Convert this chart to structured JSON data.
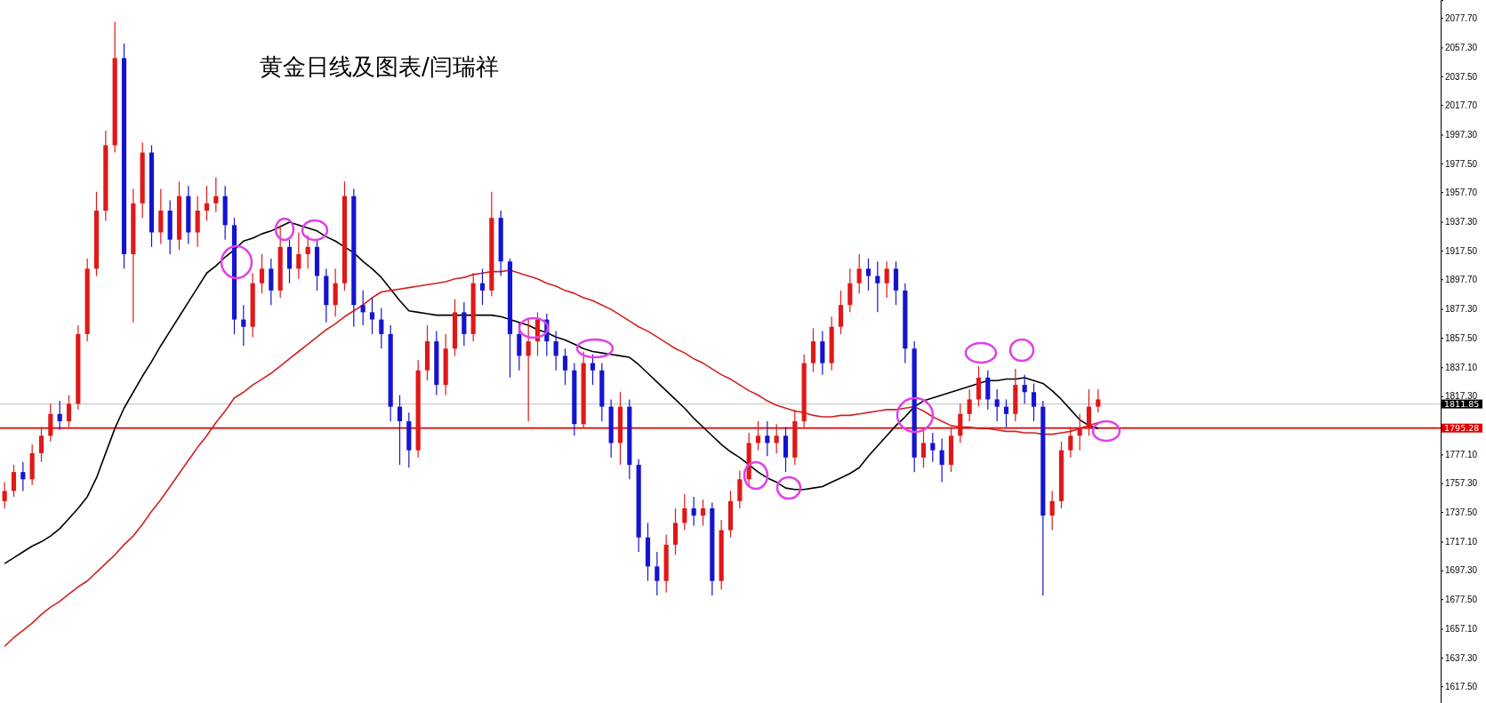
{
  "chart_data": {
    "type": "candlestick",
    "title": "黄金日线及图表/闫瑞祥",
    "categories": [
      null,
      null,
      null,
      null,
      null,
      null,
      null,
      null,
      null,
      null,
      null,
      null,
      null,
      null,
      null,
      null,
      null,
      null,
      null,
      null,
      null,
      null,
      null,
      null,
      null,
      null,
      null,
      null,
      null,
      null,
      null,
      null,
      null,
      null,
      null,
      null,
      null,
      null,
      null,
      null,
      null,
      null,
      null,
      null,
      null,
      null,
      null,
      null,
      null,
      null,
      null,
      null,
      null,
      null,
      null,
      null,
      null,
      null,
      null,
      null,
      null,
      null,
      null,
      null,
      null,
      null,
      null,
      null,
      null,
      null,
      null,
      null,
      null,
      null,
      null,
      null,
      null,
      null,
      null,
      null,
      null,
      null,
      null,
      null,
      null,
      null,
      null,
      null,
      null,
      null,
      null,
      null,
      null,
      null,
      null,
      null,
      null,
      null,
      null,
      null,
      null,
      null,
      null,
      null,
      null,
      null,
      null,
      null,
      null,
      null,
      null,
      null,
      null,
      null,
      null,
      null,
      null,
      null,
      null,
      null
    ],
    "ohlc": [
      [
        1745,
        1758,
        1740,
        1752
      ],
      [
        1752,
        1770,
        1748,
        1765
      ],
      [
        1765,
        1772,
        1752,
        1760
      ],
      [
        1760,
        1784,
        1756,
        1778
      ],
      [
        1778,
        1796,
        1772,
        1790
      ],
      [
        1790,
        1812,
        1786,
        1805
      ],
      [
        1805,
        1814,
        1794,
        1800
      ],
      [
        1800,
        1818,
        1796,
        1812
      ],
      [
        1812,
        1866,
        1808,
        1860
      ],
      [
        1860,
        1912,
        1855,
        1905
      ],
      [
        1905,
        1958,
        1900,
        1945
      ],
      [
        1945,
        2000,
        1938,
        1990
      ],
      [
        1990,
        2075,
        1985,
        2050
      ],
      [
        2050,
        2060,
        1905,
        1915
      ],
      [
        1915,
        1960,
        1868,
        1950
      ],
      [
        1950,
        1992,
        1940,
        1985
      ],
      [
        1985,
        1990,
        1920,
        1930
      ],
      [
        1930,
        1960,
        1922,
        1945
      ],
      [
        1945,
        1952,
        1915,
        1925
      ],
      [
        1925,
        1965,
        1918,
        1955
      ],
      [
        1955,
        1962,
        1922,
        1930
      ],
      [
        1930,
        1955,
        1920,
        1945
      ],
      [
        1945,
        1962,
        1938,
        1950
      ],
      [
        1950,
        1968,
        1944,
        1955
      ],
      [
        1955,
        1962,
        1925,
        1935
      ],
      [
        1935,
        1940,
        1860,
        1870
      ],
      [
        1870,
        1880,
        1852,
        1865
      ],
      [
        1865,
        1902,
        1858,
        1895
      ],
      [
        1895,
        1915,
        1888,
        1905
      ],
      [
        1905,
        1912,
        1880,
        1890
      ],
      [
        1890,
        1935,
        1885,
        1920
      ],
      [
        1920,
        1925,
        1895,
        1905
      ],
      [
        1905,
        1930,
        1898,
        1915
      ],
      [
        1915,
        1928,
        1905,
        1920
      ],
      [
        1920,
        1925,
        1890,
        1900
      ],
      [
        1900,
        1905,
        1868,
        1880
      ],
      [
        1880,
        1905,
        1872,
        1895
      ],
      [
        1895,
        1965,
        1890,
        1955
      ],
      [
        1955,
        1960,
        1865,
        1880
      ],
      [
        1880,
        1890,
        1866,
        1875
      ],
      [
        1875,
        1885,
        1860,
        1870
      ],
      [
        1870,
        1878,
        1850,
        1860
      ],
      [
        1860,
        1866,
        1800,
        1810
      ],
      [
        1810,
        1818,
        1770,
        1800
      ],
      [
        1800,
        1806,
        1768,
        1780
      ],
      [
        1780,
        1842,
        1775,
        1835
      ],
      [
        1835,
        1866,
        1828,
        1855
      ],
      [
        1855,
        1862,
        1818,
        1825
      ],
      [
        1825,
        1860,
        1818,
        1850
      ],
      [
        1850,
        1884,
        1845,
        1875
      ],
      [
        1875,
        1882,
        1852,
        1860
      ],
      [
        1860,
        1902,
        1855,
        1895
      ],
      [
        1895,
        1905,
        1880,
        1890
      ],
      [
        1890,
        1958,
        1886,
        1940
      ],
      [
        1940,
        1945,
        1900,
        1910
      ],
      [
        1910,
        1912,
        1830,
        1860
      ],
      [
        1860,
        1868,
        1835,
        1845
      ],
      [
        1845,
        1870,
        1800,
        1855
      ],
      [
        1855,
        1875,
        1845,
        1870
      ],
      [
        1870,
        1874,
        1845,
        1855
      ],
      [
        1855,
        1862,
        1835,
        1845
      ],
      [
        1845,
        1850,
        1825,
        1835
      ],
      [
        1835,
        1840,
        1790,
        1798
      ],
      [
        1798,
        1848,
        1795,
        1840
      ],
      [
        1840,
        1846,
        1825,
        1835
      ],
      [
        1835,
        1840,
        1800,
        1810
      ],
      [
        1810,
        1815,
        1775,
        1785
      ],
      [
        1785,
        1820,
        1770,
        1810
      ],
      [
        1810,
        1815,
        1760,
        1770
      ],
      [
        1770,
        1774,
        1710,
        1720
      ],
      [
        1720,
        1730,
        1690,
        1700
      ],
      [
        1700,
        1710,
        1680,
        1690
      ],
      [
        1690,
        1722,
        1682,
        1715
      ],
      [
        1715,
        1740,
        1708,
        1730
      ],
      [
        1730,
        1750,
        1725,
        1740
      ],
      [
        1740,
        1748,
        1728,
        1735
      ],
      [
        1735,
        1746,
        1728,
        1740
      ],
      [
        1740,
        1744,
        1680,
        1690
      ],
      [
        1690,
        1732,
        1684,
        1725
      ],
      [
        1725,
        1752,
        1720,
        1745
      ],
      [
        1745,
        1766,
        1740,
        1760
      ],
      [
        1760,
        1792,
        1756,
        1785
      ],
      [
        1785,
        1800,
        1780,
        1790
      ],
      [
        1790,
        1800,
        1776,
        1785
      ],
      [
        1785,
        1798,
        1778,
        1790
      ],
      [
        1790,
        1796,
        1765,
        1775
      ],
      [
        1775,
        1808,
        1770,
        1800
      ],
      [
        1800,
        1846,
        1796,
        1840
      ],
      [
        1840,
        1864,
        1834,
        1855
      ],
      [
        1855,
        1862,
        1832,
        1840
      ],
      [
        1840,
        1872,
        1835,
        1865
      ],
      [
        1865,
        1890,
        1860,
        1880
      ],
      [
        1880,
        1905,
        1875,
        1895
      ],
      [
        1895,
        1915,
        1888,
        1905
      ],
      [
        1905,
        1912,
        1890,
        1900
      ],
      [
        1900,
        1910,
        1875,
        1895
      ],
      [
        1895,
        1910,
        1885,
        1905
      ],
      [
        1905,
        1910,
        1880,
        1890
      ],
      [
        1890,
        1895,
        1840,
        1850
      ],
      [
        1850,
        1855,
        1765,
        1775
      ],
      [
        1775,
        1795,
        1768,
        1785
      ],
      [
        1785,
        1792,
        1772,
        1780
      ],
      [
        1780,
        1788,
        1758,
        1770
      ],
      [
        1770,
        1796,
        1765,
        1790
      ],
      [
        1790,
        1812,
        1785,
        1805
      ],
      [
        1805,
        1822,
        1800,
        1815
      ],
      [
        1815,
        1838,
        1810,
        1830
      ],
      [
        1830,
        1835,
        1808,
        1815
      ],
      [
        1815,
        1822,
        1800,
        1810
      ],
      [
        1810,
        1815,
        1796,
        1805
      ],
      [
        1805,
        1836,
        1800,
        1825
      ],
      [
        1825,
        1832,
        1812,
        1820
      ],
      [
        1820,
        1826,
        1800,
        1810
      ],
      [
        1810,
        1814,
        1680,
        1735
      ],
      [
        1735,
        1752,
        1725,
        1745
      ],
      [
        1745,
        1786,
        1740,
        1780
      ],
      [
        1780,
        1796,
        1775,
        1790
      ],
      [
        1790,
        1805,
        1780,
        1795
      ],
      [
        1795,
        1822,
        1790,
        1810
      ],
      [
        1810,
        1822,
        1806,
        1815
      ]
    ],
    "series": [
      {
        "type": "line",
        "color": "#000000",
        "values": [
          1702,
          1706,
          1710,
          1714,
          1717,
          1721,
          1726,
          1733,
          1740,
          1748,
          1761,
          1778,
          1795,
          1809,
          1820,
          1831,
          1841,
          1852,
          1862,
          1872,
          1882,
          1892,
          1902,
          1907,
          1913,
          1918,
          1924,
          1926,
          1929,
          1931,
          1934,
          1937,
          1935,
          1933,
          1931,
          1927,
          1924,
          1920,
          1916,
          1910,
          1905,
          1899,
          1891,
          1883,
          1876,
          1875,
          1874,
          1873,
          1873,
          1873,
          1873,
          1873,
          1873,
          1873,
          1872,
          1870,
          1868,
          1866,
          1863,
          1861,
          1858,
          1856,
          1853,
          1850,
          1848,
          1847,
          1846,
          1845,
          1844,
          1839,
          1833,
          1827,
          1821,
          1815,
          1809,
          1802,
          1796,
          1790,
          1784,
          1779,
          1775,
          1770,
          1765,
          1761,
          1758,
          1754,
          1753,
          1753,
          1754,
          1755,
          1758,
          1761,
          1764,
          1768,
          1776,
          1783,
          1790,
          1797,
          1803,
          1810,
          1814,
          1816,
          1818,
          1820,
          1822,
          1824,
          1826,
          1828,
          1828,
          1829,
          1829,
          1830,
          1828,
          1826,
          1821,
          1815,
          1808,
          1801,
          1797,
          1795
        ]
      },
      {
        "type": "line",
        "color": "#d42020",
        "values": [
          1645,
          1651,
          1656,
          1661,
          1667,
          1672,
          1676,
          1681,
          1686,
          1690,
          1696,
          1702,
          1708,
          1715,
          1721,
          1729,
          1738,
          1746,
          1755,
          1764,
          1773,
          1782,
          1790,
          1799,
          1807,
          1816,
          1820,
          1825,
          1829,
          1833,
          1838,
          1843,
          1848,
          1853,
          1858,
          1863,
          1867,
          1872,
          1876,
          1880,
          1885,
          1889,
          1890,
          1891,
          1892,
          1893,
          1894,
          1895,
          1896,
          1898,
          1899,
          1901,
          1902,
          1903,
          1903,
          1904,
          1902,
          1900,
          1898,
          1895,
          1893,
          1890,
          1888,
          1885,
          1883,
          1880,
          1877,
          1873,
          1869,
          1865,
          1862,
          1858,
          1854,
          1850,
          1847,
          1843,
          1840,
          1836,
          1832,
          1829,
          1825,
          1821,
          1818,
          1814,
          1811,
          1809,
          1807,
          1806,
          1804,
          1803,
          1803,
          1804,
          1804,
          1805,
          1806,
          1807,
          1808,
          1808,
          1809,
          1810,
          1807,
          1803,
          1800,
          1797,
          1796,
          1796,
          1795,
          1795,
          1794,
          1793,
          1793,
          1792,
          1792,
          1791,
          1791,
          1792,
          1793,
          1795,
          1797,
          1799
        ]
      }
    ],
    "ylim": [
      1606,
      2090
    ],
    "yticks": [
      {
        "value": 2077.7,
        "label": "2077.70"
      },
      {
        "value": 2057.3,
        "label": "2057.30"
      },
      {
        "value": 2037.5,
        "label": "2037.50"
      },
      {
        "value": 2017.7,
        "label": "2017.70"
      },
      {
        "value": 1997.3,
        "label": "1997.30"
      },
      {
        "value": 1977.5,
        "label": "1977.50"
      },
      {
        "value": 1957.7,
        "label": "1957.70"
      },
      {
        "value": 1937.3,
        "label": "1937.30"
      },
      {
        "value": 1917.5,
        "label": "1917.50"
      },
      {
        "value": 1897.7,
        "label": "1897.70"
      },
      {
        "value": 1877.3,
        "label": "1877.30"
      },
      {
        "value": 1857.5,
        "label": "1857.50"
      },
      {
        "value": 1837.1,
        "label": "1837.10"
      },
      {
        "value": 1817.3,
        "label": "1817.30"
      },
      {
        "value": 1777.1,
        "label": "1777.10"
      },
      {
        "value": 1757.3,
        "label": "1757.30"
      },
      {
        "value": 1737.5,
        "label": "1737.50"
      },
      {
        "value": 1717.1,
        "label": "1717.10"
      },
      {
        "value": 1697.3,
        "label": "1697.30"
      },
      {
        "value": 1677.5,
        "label": "1677.50"
      },
      {
        "value": 1657.1,
        "label": "1657.10"
      },
      {
        "value": 1637.3,
        "label": "1637.30"
      },
      {
        "value": 1617.5,
        "label": "1617.50"
      }
    ],
    "tick_labels": "y",
    "ref_lines": [
      {
        "axis": "y",
        "value": 1811.85,
        "label": "1811.85",
        "color": "#c0c0c0"
      },
      {
        "axis": "y",
        "value": 1795.28,
        "label": "1795.28",
        "color": "#e00000"
      }
    ]
  }
}
